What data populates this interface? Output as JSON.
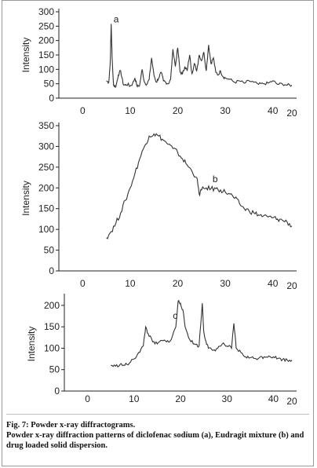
{
  "figure": {
    "caption_title": "Fig. 7: Powder x-ray diffractograms.",
    "caption_text": "Powder x-ray diffraction patterns of diclofenac sodium (a), Eudragit mixture (b) and drug loaded solid dispersion."
  },
  "chart_data": [
    {
      "type": "line",
      "panel_label": "a",
      "ylabel": "Intensity",
      "xlabel": "2θ",
      "xlim": [
        -5,
        45
      ],
      "ylim": [
        0,
        300
      ],
      "xticks": [
        0,
        10,
        20,
        30,
        40
      ],
      "yticks": [
        0,
        50,
        100,
        150,
        200,
        250,
        300
      ],
      "series": [
        {
          "color": "#333333",
          "x": [
            5,
            5.5,
            5.8,
            6,
            6.2,
            6.5,
            7,
            7.5,
            8,
            8.5,
            9,
            9.5,
            10,
            10.5,
            11,
            11.5,
            12,
            12.5,
            13,
            13.5,
            14,
            14.5,
            15,
            15.5,
            16,
            16.5,
            17,
            17.5,
            18,
            18.5,
            19,
            19.5,
            20,
            20.5,
            21,
            21.5,
            22,
            22.5,
            23,
            23.5,
            24,
            24.5,
            25,
            25.5,
            26,
            26.5,
            27,
            27.5,
            28,
            28.5,
            29,
            29.5,
            30,
            31,
            32,
            33,
            34,
            35,
            36,
            37,
            38,
            39,
            40,
            41,
            42,
            43,
            44
          ],
          "y": [
            60,
            55,
            120,
            258,
            140,
            45,
            40,
            80,
            95,
            50,
            45,
            48,
            42,
            50,
            70,
            40,
            45,
            100,
            55,
            48,
            65,
            140,
            80,
            55,
            70,
            90,
            60,
            55,
            50,
            65,
            170,
            110,
            175,
            90,
            85,
            110,
            95,
            150,
            85,
            120,
            95,
            150,
            130,
            160,
            95,
            185,
            120,
            140,
            90,
            80,
            95,
            75,
            70,
            65,
            55,
            60,
            52,
            60,
            55,
            48,
            50,
            52,
            60,
            48,
            50,
            45,
            45
          ]
        }
      ]
    },
    {
      "type": "line",
      "panel_label": "b",
      "ylabel": "Intensity",
      "xlabel": "2θ",
      "xlim": [
        -5,
        45
      ],
      "ylim": [
        0,
        350
      ],
      "xticks": [
        0,
        10,
        20,
        30,
        40
      ],
      "yticks": [
        0,
        50,
        100,
        150,
        200,
        250,
        300,
        350
      ],
      "series": [
        {
          "color": "#333333",
          "x": [
            5,
            6,
            7,
            8,
            9,
            10,
            11,
            12,
            13,
            14,
            15,
            16,
            17,
            18,
            19,
            20,
            21,
            22,
            23,
            24,
            24.5,
            25,
            26,
            27,
            28,
            29,
            30,
            31,
            32,
            33,
            34,
            35,
            36,
            37,
            38,
            39,
            40,
            41,
            42,
            43,
            44
          ],
          "y": [
            80,
            95,
            115,
            140,
            170,
            200,
            235,
            270,
            300,
            325,
            330,
            325,
            315,
            305,
            295,
            285,
            270,
            255,
            240,
            225,
            185,
            195,
            200,
            198,
            198,
            195,
            190,
            185,
            175,
            162,
            150,
            145,
            140,
            135,
            132,
            130,
            128,
            125,
            122,
            118,
            108
          ]
        }
      ]
    },
    {
      "type": "line",
      "panel_label": "c",
      "ylabel": "Intensity",
      "xlabel": "2θ",
      "xlim": [
        -5,
        45
      ],
      "ylim": [
        0,
        220
      ],
      "xticks": [
        0,
        10,
        20,
        30,
        40
      ],
      "yticks": [
        0,
        50,
        100,
        150,
        200
      ],
      "series": [
        {
          "color": "#333333",
          "x": [
            5,
            6,
            7,
            8,
            9,
            10,
            11,
            12,
            12.5,
            13,
            14,
            15,
            16,
            17,
            18,
            19,
            19.5,
            20,
            20.5,
            21,
            22,
            23,
            24,
            24.7,
            25,
            25.5,
            26,
            27,
            28,
            29,
            30,
            31,
            31.5,
            32,
            33,
            34,
            35,
            36,
            37,
            38,
            39,
            40,
            41,
            42,
            43,
            44
          ],
          "y": [
            60,
            58,
            62,
            60,
            65,
            75,
            90,
            105,
            150,
            135,
            115,
            110,
            118,
            115,
            120,
            150,
            210,
            205,
            190,
            150,
            120,
            110,
            105,
            205,
            140,
            115,
            100,
            95,
            100,
            110,
            105,
            100,
            158,
            100,
            90,
            80,
            78,
            76,
            78,
            80,
            82,
            80,
            76,
            74,
            72,
            72
          ]
        }
      ]
    }
  ]
}
